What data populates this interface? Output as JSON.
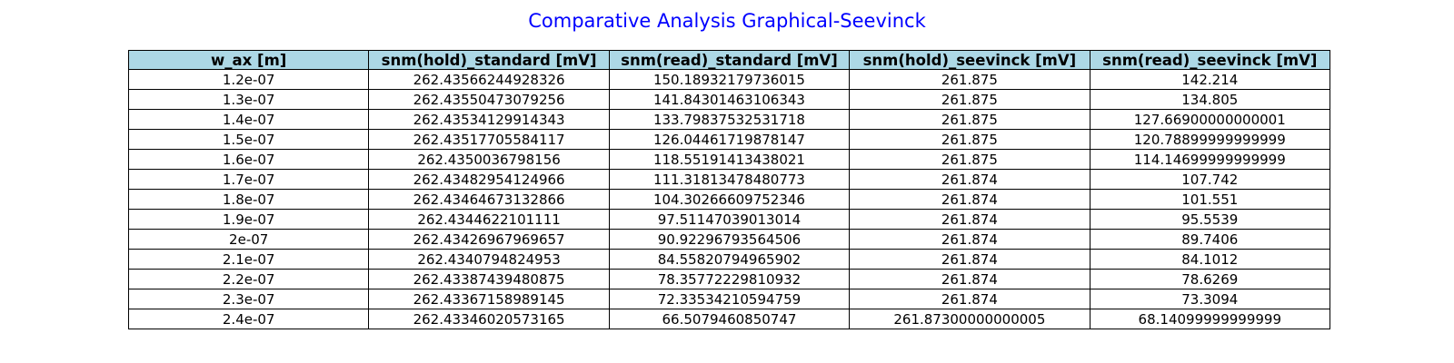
{
  "chart_data": {
    "type": "table",
    "title": "Comparative Analysis Graphical-Seevinck",
    "title_color": "#0000ff",
    "header_bg_color": "#add8e6",
    "columns": [
      "w_ax [m]",
      "snm(hold)_standard [mV]",
      "snm(read)_standard [mV]",
      "snm(hold)_seevinck [mV]",
      "snm(read)_seevinck [mV]"
    ],
    "rows": [
      [
        "1.2e-07",
        "262.43566244928326",
        "150.18932179736015",
        "261.875",
        "142.214"
      ],
      [
        "1.3e-07",
        "262.43550473079256",
        "141.84301463106343",
        "261.875",
        "134.805"
      ],
      [
        "1.4e-07",
        "262.43534129914343",
        "133.79837532531718",
        "261.875",
        "127.66900000000001"
      ],
      [
        "1.5e-07",
        "262.43517705584117",
        "126.04461719878147",
        "261.875",
        "120.78899999999999"
      ],
      [
        "1.6e-07",
        "262.4350036798156",
        "118.55191413438021",
        "261.875",
        "114.14699999999999"
      ],
      [
        "1.7e-07",
        "262.43482954124966",
        "111.31813478480773",
        "261.874",
        "107.742"
      ],
      [
        "1.8e-07",
        "262.43464673132866",
        "104.30266609752346",
        "261.874",
        "101.551"
      ],
      [
        "1.9e-07",
        "262.4344622101111",
        "97.51147039013014",
        "261.874",
        "95.5539"
      ],
      [
        "2e-07",
        "262.43426967969657",
        "90.92296793564506",
        "261.874",
        "89.7406"
      ],
      [
        "2.1e-07",
        "262.4340794824953",
        "84.55820794965902",
        "261.874",
        "84.1012"
      ],
      [
        "2.2e-07",
        "262.43387439480875",
        "78.35772229810932",
        "261.874",
        "78.6269"
      ],
      [
        "2.3e-07",
        "262.43367158989145",
        "72.33534210594759",
        "261.874",
        "73.3094"
      ],
      [
        "2.4e-07",
        "262.43346020573165",
        "66.5079460850747",
        "261.87300000000005",
        "68.14099999999999"
      ]
    ]
  }
}
